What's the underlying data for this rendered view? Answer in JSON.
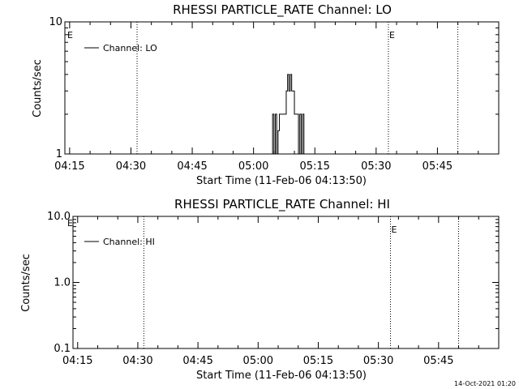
{
  "footer": {
    "timestamp": "14-Oct-2021 01:20"
  },
  "chart_data": [
    {
      "type": "line",
      "title": "RHESSI PARTICLE_RATE Channel: LO",
      "xlabel": "Start Time (11-Feb-06 04:13:50)",
      "ylabel": "Counts/sec",
      "yscale": "log",
      "xlim": [
        "04:13:50",
        "06:00:00"
      ],
      "ylim": [
        1,
        10
      ],
      "x_ticks": [
        "04:15",
        "04:30",
        "04:45",
        "05:00",
        "05:15",
        "05:30",
        "05:45"
      ],
      "y_ticks": [
        "1",
        "10"
      ],
      "legend": {
        "position": "top-left",
        "entries": [
          "Channel: LO"
        ]
      },
      "event_lines": [
        {
          "time": "04:31:30",
          "label": ""
        },
        {
          "time": "05:33:00",
          "label": "E"
        },
        {
          "time": "05:50:00",
          "label": ""
        }
      ],
      "start_marker": "E",
      "series": [
        {
          "name": "Channel: LO",
          "x": [
            "05:04:20",
            "05:04:40",
            "05:05:00",
            "05:05:20",
            "05:05:40",
            "05:06:00",
            "05:06:20",
            "05:06:40",
            "05:07:00",
            "05:07:20",
            "05:07:40",
            "05:08:00",
            "05:08:20",
            "05:08:40",
            "05:09:00",
            "05:09:20",
            "05:09:40",
            "05:10:00",
            "05:10:20",
            "05:10:40",
            "05:11:00",
            "05:11:20",
            "05:11:40",
            "05:12:00",
            "05:12:20",
            "05:12:40",
            "05:13:00"
          ],
          "y": [
            1,
            2,
            1,
            2,
            1,
            1.5,
            2,
            2,
            2,
            2,
            2,
            3,
            4,
            3,
            4,
            3,
            3,
            2,
            2,
            2,
            1,
            2,
            1,
            2,
            1,
            1,
            1
          ]
        }
      ]
    },
    {
      "type": "line",
      "title": "RHESSI PARTICLE_RATE Channel: HI",
      "xlabel": "Start Time (11-Feb-06 04:13:50)",
      "ylabel": "Counts/sec",
      "yscale": "log",
      "xlim": [
        "04:13:50",
        "06:00:00"
      ],
      "ylim": [
        0.1,
        10
      ],
      "x_ticks": [
        "04:15",
        "04:30",
        "04:45",
        "05:00",
        "05:15",
        "05:30",
        "05:45"
      ],
      "y_ticks": [
        "0.1",
        "1.0",
        "10.0"
      ],
      "legend": {
        "position": "top-left",
        "entries": [
          "Channel: HI"
        ]
      },
      "event_lines": [
        {
          "time": "04:31:30",
          "label": ""
        },
        {
          "time": "05:33:00",
          "label": "E"
        },
        {
          "time": "05:50:00",
          "label": ""
        }
      ],
      "start_marker": "E",
      "series": [
        {
          "name": "Channel: HI",
          "x": [],
          "y": []
        }
      ]
    }
  ]
}
